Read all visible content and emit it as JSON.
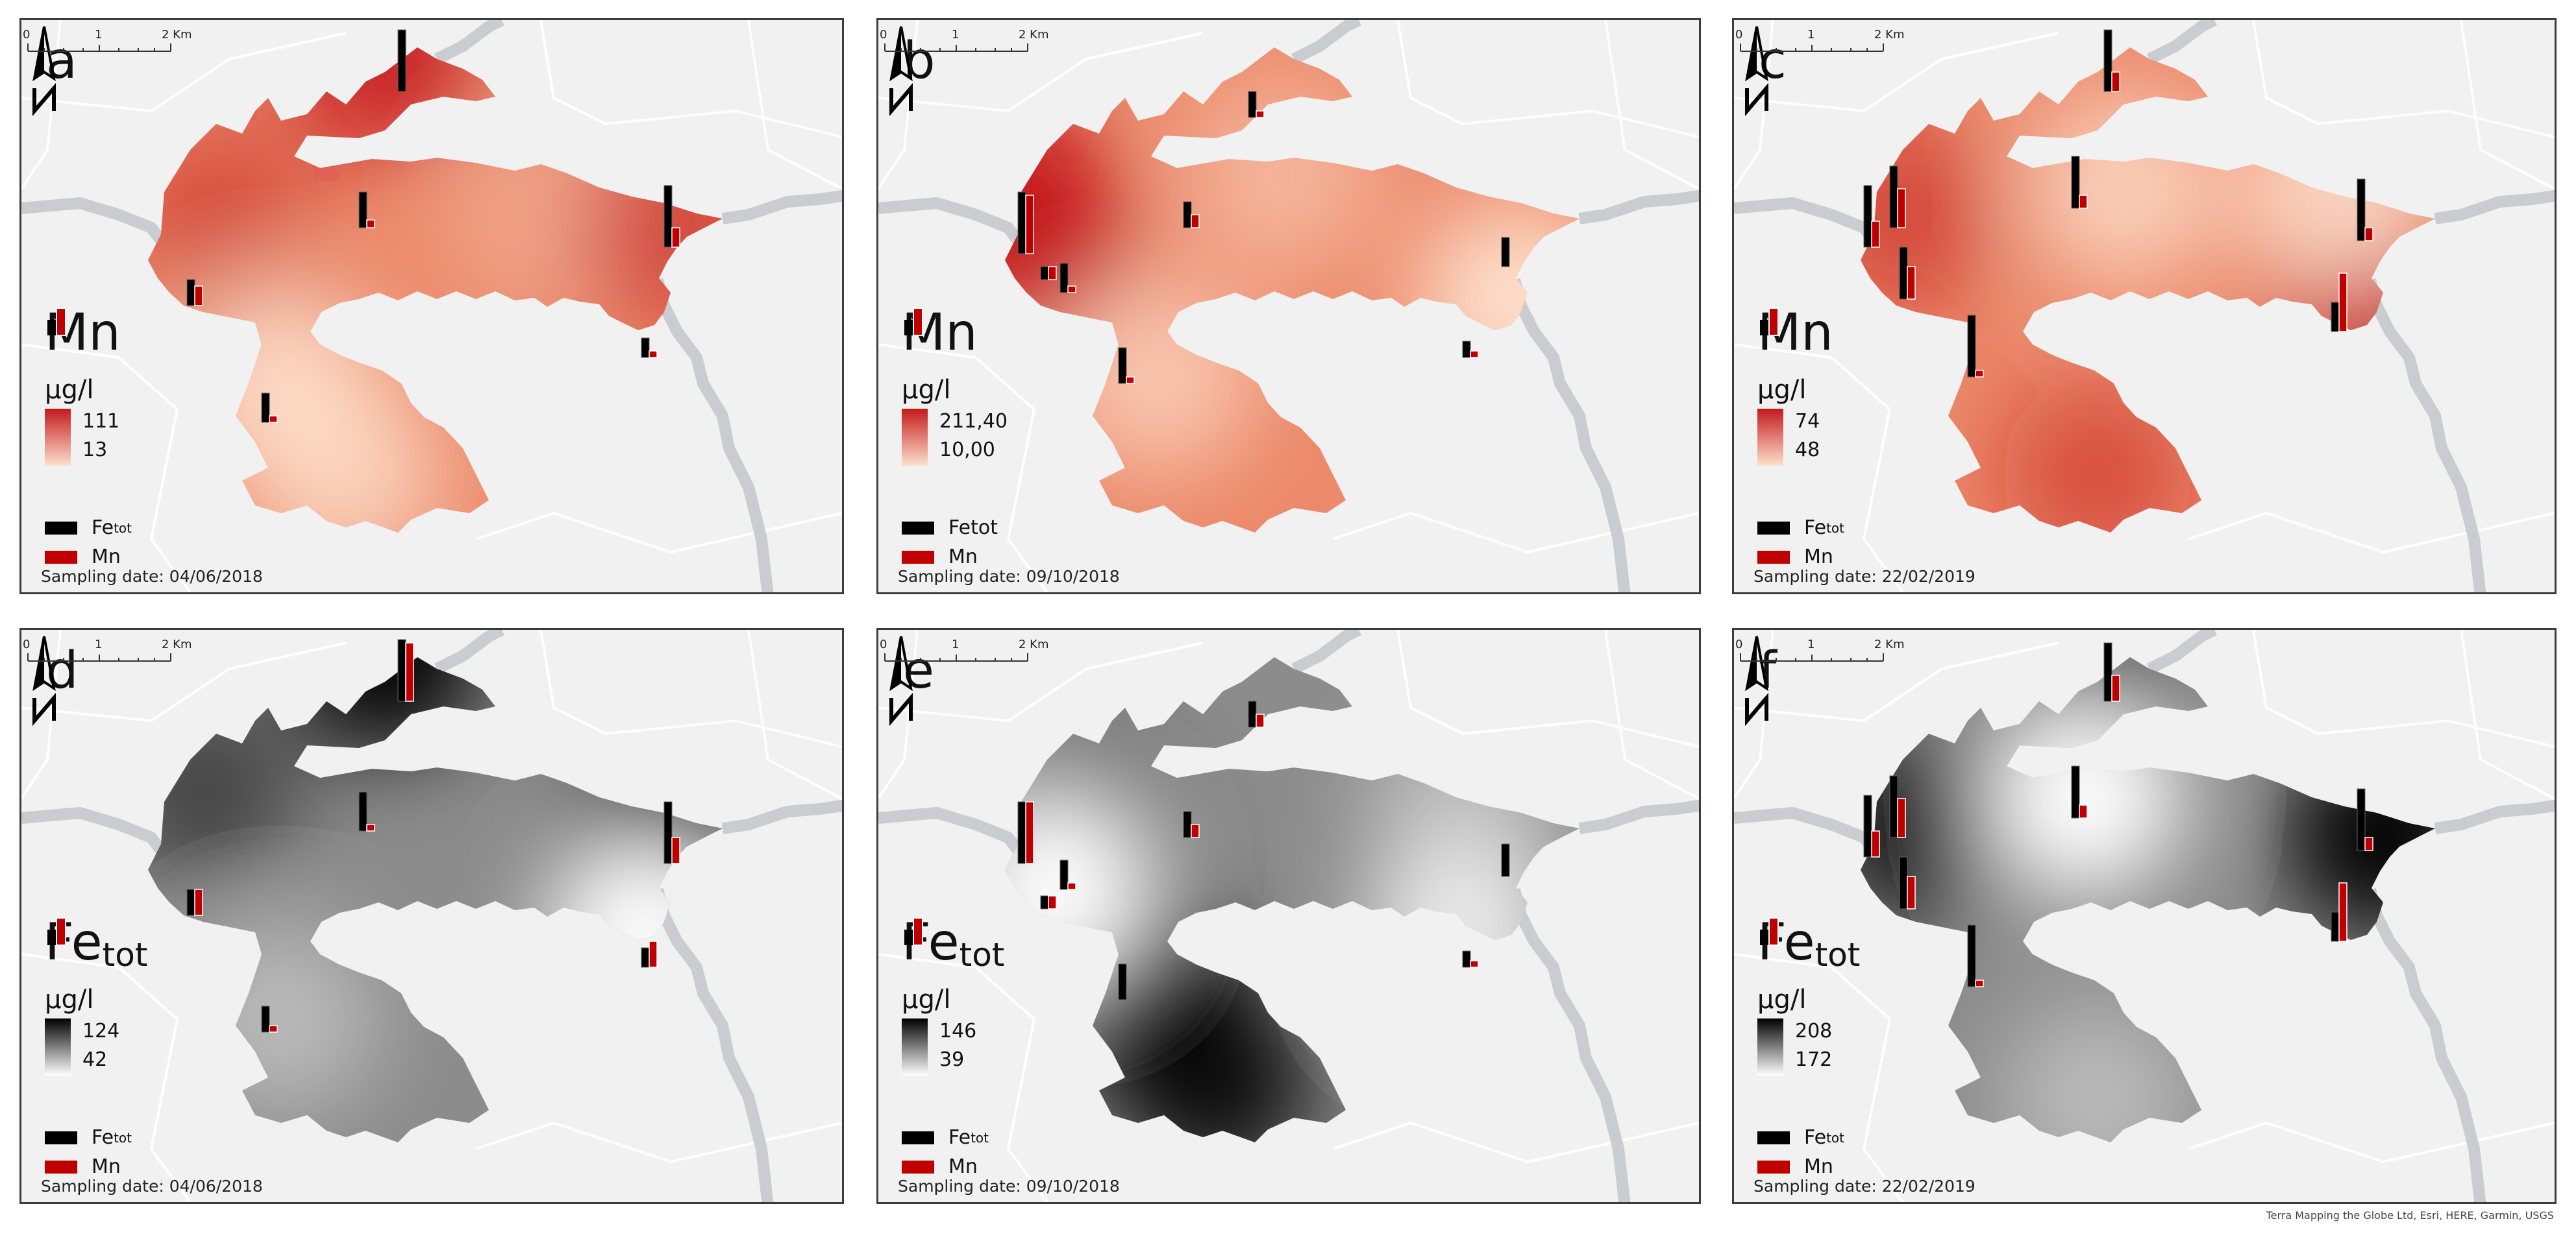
{
  "panels": [
    {
      "letter": "a",
      "param": "Mn",
      "param_sub": "",
      "unit": "µg/l",
      "max": "111",
      "min": "13",
      "scheme": "red",
      "legend_fe": "Fe",
      "legend_fe_sub": "tot",
      "legend_mn": "Mn",
      "date": "Sampling date: 04/06/2018"
    },
    {
      "letter": "b",
      "param": "Mn",
      "param_sub": "",
      "unit": "µg/l",
      "max": "211,40",
      "min": "10,00",
      "scheme": "red",
      "legend_fe": "Fetot",
      "legend_fe_sub": "",
      "legend_mn": "Mn",
      "date": "Sampling date: 09/10/2018"
    },
    {
      "letter": "c",
      "param": "Mn",
      "param_sub": "",
      "unit": "µg/l",
      "max": "74",
      "min": "48",
      "scheme": "red",
      "legend_fe": "Fe",
      "legend_fe_sub": "tot",
      "legend_mn": "Mn",
      "date": "Sampling date: 22/02/2019"
    },
    {
      "letter": "d",
      "param": "Fe",
      "param_sub": "tot",
      "unit": "µg/l",
      "max": "124",
      "min": "42",
      "scheme": "gray",
      "legend_fe": "Fe",
      "legend_fe_sub": "tot",
      "legend_mn": "Mn",
      "date": "Sampling date: 04/06/2018"
    },
    {
      "letter": "e",
      "param": "Fe",
      "param_sub": "tot",
      "unit": "µg/l",
      "max": "146",
      "min": "39",
      "scheme": "gray",
      "legend_fe": "Fe",
      "legend_fe_sub": "tot",
      "legend_mn": "Mn",
      "date": "Sampling date: 09/10/2018"
    },
    {
      "letter": "f",
      "param": "Fe",
      "param_sub": "tot",
      "unit": "µg/l",
      "max": "208",
      "min": "172",
      "scheme": "gray",
      "legend_fe": "Fe",
      "legend_fe_sub": "tot",
      "legend_mn": "Mn",
      "date": "Sampling date: 22/02/2019"
    }
  ],
  "scalebar": {
    "t0": "0",
    "t1": "1",
    "t2": "2 Km"
  },
  "colors": {
    "red_dark": "#c41a1c",
    "red_light": "#fde0cc",
    "gray_dark": "#000000",
    "gray_light": "#ffffff",
    "bar_fe": "#000000",
    "bar_mn": "#c00000",
    "map_bg": "#f1f1f1",
    "river": "#c9ccd0"
  },
  "credit": "Terra Mapping the Globe Ltd, Esri, HERE, Garmin, USGS",
  "icons": {
    "north": "north-arrow-icon",
    "bars": "bar-chart-symbol-icon"
  }
}
